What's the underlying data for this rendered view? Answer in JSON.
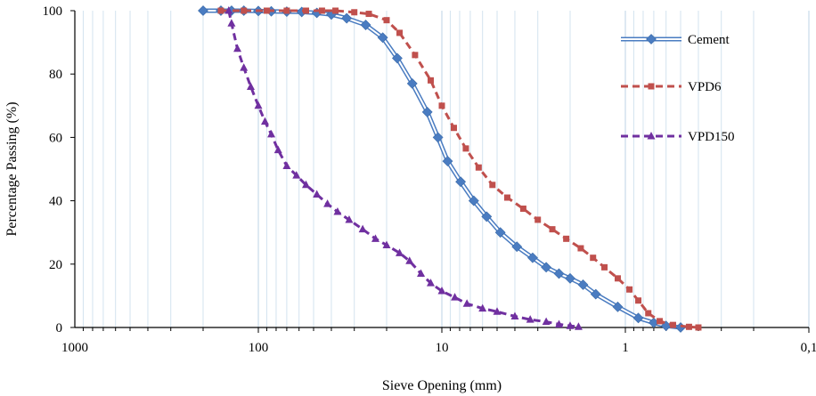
{
  "chart_data": {
    "type": "line",
    "xlabel": "Sieve Opening (mm)",
    "ylabel": "Percentage Passing (%)",
    "x_scale": "log",
    "x_reversed": true,
    "xlim": [
      1000,
      0.1
    ],
    "ylim": [
      0,
      100
    ],
    "x_ticks": [
      1000,
      100,
      10,
      1,
      0.1
    ],
    "x_tick_labels": [
      "1000",
      "100",
      "10",
      "1",
      "0,1"
    ],
    "y_ticks": [
      0,
      20,
      40,
      60,
      80,
      100
    ],
    "grid": "vertical minor and major lines",
    "legend_position": "top-right",
    "series": [
      {
        "name": "Cement",
        "color": "#4a7cc1",
        "line_style": "double",
        "marker": "diamond",
        "points": [
          [
            200,
            100
          ],
          [
            160,
            100
          ],
          [
            140,
            100
          ],
          [
            120,
            100
          ],
          [
            100,
            99.9
          ],
          [
            85,
            99.8
          ],
          [
            70,
            99.7
          ],
          [
            58,
            99.6
          ],
          [
            48,
            99.3
          ],
          [
            40,
            98.8
          ],
          [
            33,
            97.6
          ],
          [
            26,
            95.5
          ],
          [
            21,
            91.5
          ],
          [
            17.5,
            85
          ],
          [
            14.5,
            77
          ],
          [
            12,
            68
          ],
          [
            10.5,
            60
          ],
          [
            9.3,
            52.5
          ],
          [
            7.9,
            46
          ],
          [
            6.7,
            40
          ],
          [
            5.7,
            35
          ],
          [
            4.8,
            30
          ],
          [
            3.9,
            25.5
          ],
          [
            3.2,
            22
          ],
          [
            2.7,
            19
          ],
          [
            2.3,
            17
          ],
          [
            2.0,
            15.5
          ],
          [
            1.7,
            13.5
          ],
          [
            1.45,
            10.5
          ],
          [
            1.1,
            6.5
          ],
          [
            0.85,
            3
          ],
          [
            0.7,
            1.5
          ],
          [
            0.6,
            0.5
          ],
          [
            0.5,
            0
          ]
        ]
      },
      {
        "name": "VPD6",
        "color": "#c0504d",
        "line_style": "dashed",
        "marker": "square",
        "points": [
          [
            160,
            100
          ],
          [
            120,
            100
          ],
          [
            90,
            100
          ],
          [
            70,
            100
          ],
          [
            55,
            100
          ],
          [
            45,
            100
          ],
          [
            38,
            100
          ],
          [
            30,
            99.5
          ],
          [
            25,
            99
          ],
          [
            20,
            97
          ],
          [
            17,
            93
          ],
          [
            14,
            86
          ],
          [
            11.5,
            78
          ],
          [
            10,
            70
          ],
          [
            8.6,
            63
          ],
          [
            7.4,
            56.5
          ],
          [
            6.3,
            50.5
          ],
          [
            5.3,
            45
          ],
          [
            4.4,
            41
          ],
          [
            3.6,
            37.5
          ],
          [
            3.0,
            34
          ],
          [
            2.5,
            31
          ],
          [
            2.1,
            28
          ],
          [
            1.75,
            25
          ],
          [
            1.5,
            22
          ],
          [
            1.3,
            19
          ],
          [
            1.1,
            15.5
          ],
          [
            0.95,
            12
          ],
          [
            0.85,
            8.5
          ],
          [
            0.75,
            4.5
          ],
          [
            0.65,
            2
          ],
          [
            0.55,
            0.8
          ],
          [
            0.45,
            0.2
          ],
          [
            0.4,
            0
          ]
        ]
      },
      {
        "name": "VPD150",
        "color": "#7030a0",
        "line_style": "dashed",
        "marker": "triangle",
        "points": [
          [
            145,
            100
          ],
          [
            140,
            96
          ],
          [
            130,
            88
          ],
          [
            120,
            82
          ],
          [
            110,
            76
          ],
          [
            100,
            70
          ],
          [
            92,
            65
          ],
          [
            85,
            61
          ],
          [
            78,
            56
          ],
          [
            70,
            51
          ],
          [
            62,
            48
          ],
          [
            55,
            45
          ],
          [
            48,
            42
          ],
          [
            42,
            39
          ],
          [
            37,
            36.5
          ],
          [
            32,
            34
          ],
          [
            27,
            31
          ],
          [
            23,
            28
          ],
          [
            20,
            26
          ],
          [
            17,
            23.5
          ],
          [
            15,
            21
          ],
          [
            13,
            17
          ],
          [
            11.5,
            14
          ],
          [
            10,
            11.5
          ],
          [
            8.5,
            9.5
          ],
          [
            7.3,
            7.5
          ],
          [
            6,
            6
          ],
          [
            5,
            5
          ],
          [
            4,
            3.5
          ],
          [
            3.3,
            2.5
          ],
          [
            2.7,
            1.8
          ],
          [
            2.3,
            1
          ],
          [
            2.0,
            0.5
          ],
          [
            1.8,
            0.2
          ]
        ]
      }
    ]
  }
}
